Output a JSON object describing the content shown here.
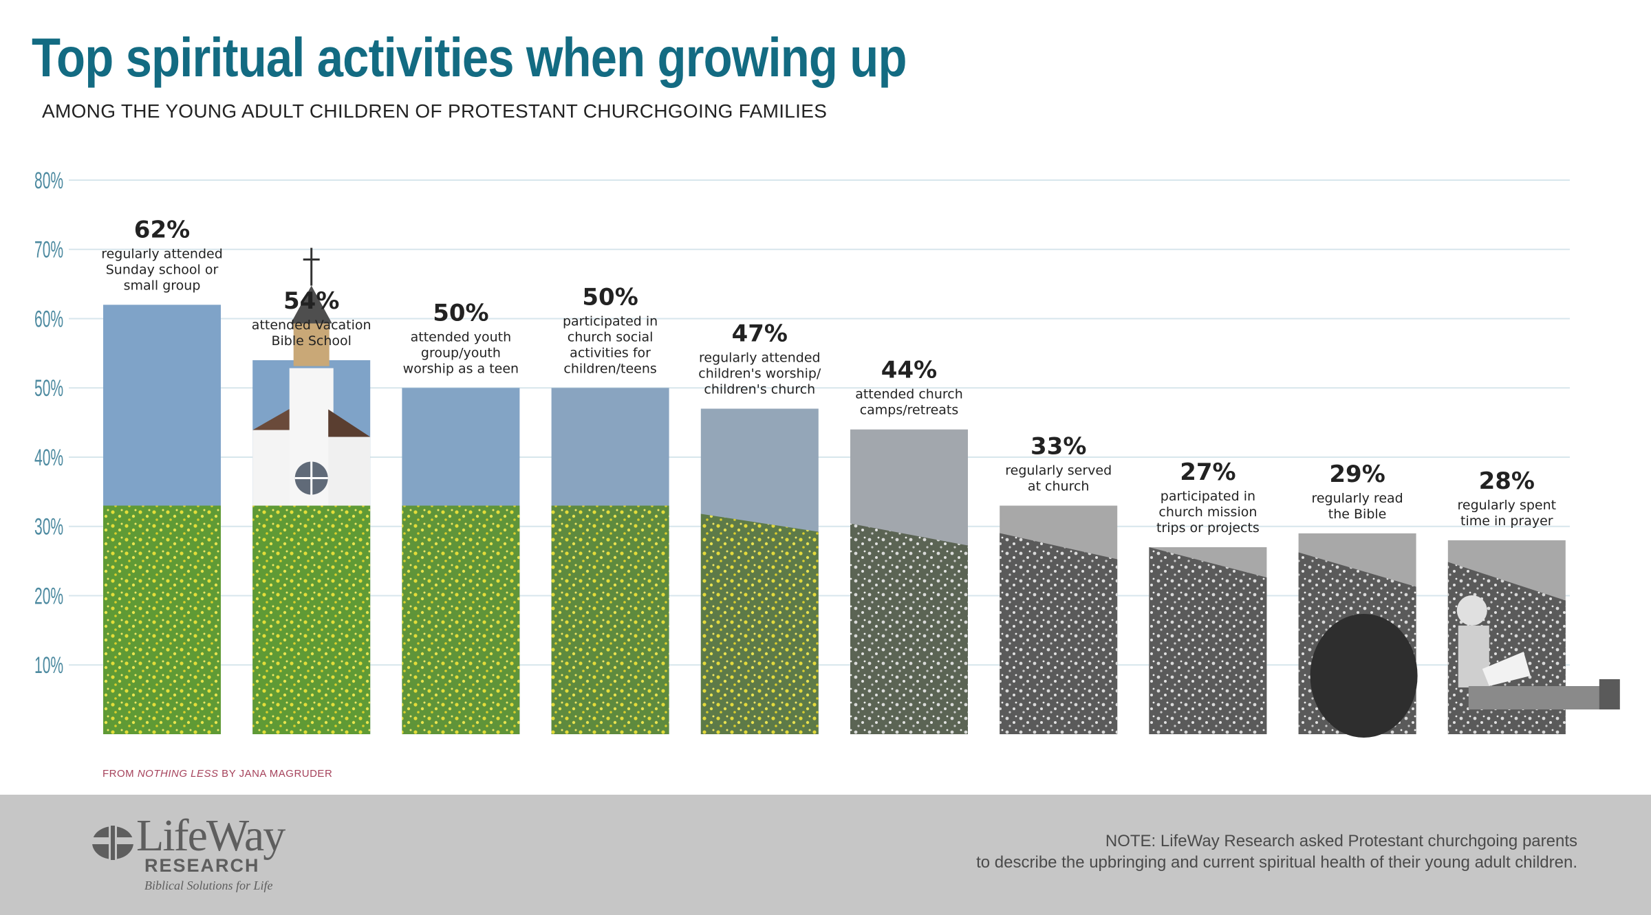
{
  "title": "Top spiritual activities when growing up",
  "subtitle": "AMONG THE YOUNG ADULT CHILDREN OF PROTESTANT CHURCHGOING FAMILIES",
  "source": {
    "prefix": "FROM ",
    "book": "NOTHING LESS",
    "suffix": " BY JANA MAGRUDER"
  },
  "footer": {
    "logo_word": "LifeWay",
    "logo_research": "RESEARCH",
    "logo_tagline": "Biblical Solutions for Life",
    "note_line1": "NOTE: LifeWay Research asked Protestant churchgoing parents",
    "note_line2": "to describe the upbringing and current spiritual health of their young adult children."
  },
  "colors": {
    "title": "#136b82",
    "axis_tick": "#4d8aa0",
    "grid": "#d7e6ec",
    "sky_color": "#7fa3c8",
    "grass_color": "#5f9a35",
    "dandelion_color": "#f2e43a",
    "sky_gray": "#a8a8a8",
    "grass_gray": "#5a5a5a",
    "footer_bg": "#c6c6c6"
  },
  "chart_data": {
    "type": "bar",
    "ylim": [
      0,
      80
    ],
    "yticks": [
      "10%",
      "20%",
      "30%",
      "40%",
      "50%",
      "60%",
      "70%",
      "80%"
    ],
    "grid": true,
    "categories": [
      "regularly attended Sunday school or small group",
      "attended Vacation Bible School",
      "attended youth group/youth worship as a teen",
      "participated in church social activities for children/teens",
      "regularly attended children's worship/ children's church",
      "attended church camps/retreats",
      "regularly served at church",
      "participated in church mission trips or projects",
      "regularly read the Bible",
      "regularly spent time in prayer"
    ],
    "values": [
      62,
      54,
      50,
      50,
      47,
      44,
      33,
      27,
      29,
      28
    ],
    "bars": [
      {
        "value_label": "62%",
        "label_lines": [
          "regularly attended",
          "Sunday school or",
          "small group"
        ],
        "grayscale": 0,
        "decor": "none"
      },
      {
        "value_label": "54%",
        "label_lines": [
          "attended Vacation",
          "Bible School"
        ],
        "grayscale": 0,
        "decor": "church"
      },
      {
        "value_label": "50%",
        "label_lines": [
          "attended youth",
          "group/youth",
          "worship as a teen"
        ],
        "grayscale": 0.1,
        "decor": "none"
      },
      {
        "value_label": "50%",
        "label_lines": [
          "participated in",
          "church social",
          "activities for",
          "children/teens"
        ],
        "grayscale": 0.25,
        "decor": "none"
      },
      {
        "value_label": "47%",
        "label_lines": [
          "regularly attended",
          "children's worship/",
          "children's church"
        ],
        "grayscale": 0.5,
        "decor": "none"
      },
      {
        "value_label": "44%",
        "label_lines": [
          "attended church",
          "camps/retreats"
        ],
        "grayscale": 0.85,
        "decor": "none"
      },
      {
        "value_label": "33%",
        "label_lines": [
          "regularly served",
          "at church"
        ],
        "grayscale": 1,
        "decor": "none"
      },
      {
        "value_label": "27%",
        "label_lines": [
          "participated in",
          "church mission",
          "trips or projects"
        ],
        "grayscale": 1,
        "decor": "none"
      },
      {
        "value_label": "29%",
        "label_lines": [
          "regularly read",
          "the Bible"
        ],
        "grayscale": 1,
        "decor": "rock"
      },
      {
        "value_label": "28%",
        "label_lines": [
          "regularly spent",
          "time in prayer"
        ],
        "grayscale": 1,
        "decor": "child"
      }
    ]
  }
}
